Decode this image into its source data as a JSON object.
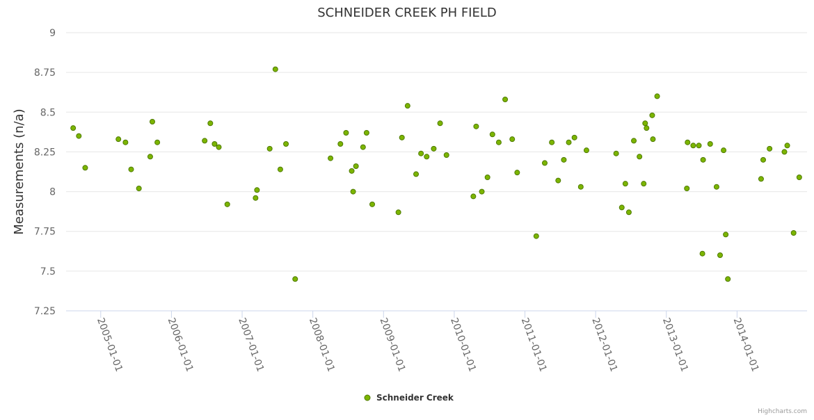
{
  "chart_data": {
    "type": "scatter",
    "title": "SCHNEIDER CREEK PH FIELD",
    "xlabel": "",
    "ylabel": "Measurements (n/a)",
    "ylim": [
      7.25,
      9
    ],
    "xlim": [
      2004.51,
      2014.99
    ],
    "yticks": [
      7.25,
      7.5,
      7.75,
      8,
      8.25,
      8.5,
      8.75,
      9
    ],
    "ytick_labels": [
      "7.25",
      "7.5",
      "7.75",
      "8",
      "8.25",
      "8.5",
      "8.75",
      "9"
    ],
    "xticks": [
      2005,
      2006,
      2007,
      2008,
      2009,
      2010,
      2011,
      2012,
      2013,
      2014
    ],
    "xtick_labels": [
      "2005-01-01",
      "2006-01-01",
      "2007-01-01",
      "2008-01-01",
      "2009-01-01",
      "2010-01-01",
      "2011-01-01",
      "2012-01-01",
      "2013-01-01",
      "2014-01-01"
    ],
    "grid": true,
    "legend_position": "bottom-center",
    "credits": "Highcharts.com",
    "series": [
      {
        "name": "Schneider Creek",
        "color": "#7cb500",
        "stroke": "#4e7a00",
        "x": [
          2004.61,
          2004.69,
          2004.78,
          2005.25,
          2005.35,
          2005.43,
          2005.54,
          2005.7,
          2005.73,
          2005.8,
          2006.47,
          2006.55,
          2006.61,
          2006.67,
          2006.79,
          2007.19,
          2007.21,
          2007.39,
          2007.47,
          2007.54,
          2007.62,
          2007.75,
          2008.25,
          2008.39,
          2008.47,
          2008.55,
          2008.57,
          2008.61,
          2008.71,
          2008.76,
          2008.84,
          2009.21,
          2009.26,
          2009.34,
          2009.46,
          2009.53,
          2009.61,
          2009.71,
          2009.8,
          2009.89,
          2010.27,
          2010.31,
          2010.39,
          2010.47,
          2010.54,
          2010.63,
          2010.72,
          2010.82,
          2010.89,
          2011.16,
          2011.28,
          2011.38,
          2011.47,
          2011.55,
          2011.62,
          2011.7,
          2011.79,
          2011.87,
          2012.29,
          2012.37,
          2012.42,
          2012.47,
          2012.54,
          2012.62,
          2012.68,
          2012.7,
          2012.72,
          2012.8,
          2012.81,
          2012.87,
          2013.29,
          2013.3,
          2013.38,
          2013.46,
          2013.52,
          2013.51,
          2013.62,
          2013.71,
          2013.76,
          2013.81,
          2013.84,
          2013.87,
          2014.34,
          2014.37,
          2014.46,
          2014.67,
          2014.71,
          2014.8,
          2014.88
        ],
        "y": [
          8.4,
          8.35,
          8.15,
          8.33,
          8.31,
          8.14,
          8.02,
          8.22,
          8.44,
          8.31,
          8.32,
          8.43,
          8.3,
          8.28,
          7.92,
          7.96,
          8.01,
          8.27,
          8.77,
          8.14,
          8.3,
          7.45,
          8.21,
          8.3,
          8.37,
          8.13,
          8.0,
          8.16,
          8.28,
          8.37,
          7.92,
          7.87,
          8.34,
          8.54,
          8.11,
          8.24,
          8.22,
          8.27,
          8.43,
          8.23,
          7.97,
          8.41,
          8.0,
          8.09,
          8.36,
          8.31,
          8.58,
          8.33,
          8.12,
          7.72,
          8.18,
          8.31,
          8.07,
          8.2,
          8.31,
          8.34,
          8.03,
          8.26,
          8.24,
          7.9,
          8.05,
          7.87,
          8.32,
          8.22,
          8.05,
          8.43,
          8.4,
          8.48,
          8.33,
          8.6,
          8.02,
          8.31,
          8.29,
          8.29,
          8.2,
          7.61,
          8.3,
          8.03,
          7.6,
          8.26,
          7.73,
          7.45,
          8.08,
          8.2,
          8.27,
          8.25,
          8.29,
          7.74,
          8.09
        ]
      }
    ]
  }
}
